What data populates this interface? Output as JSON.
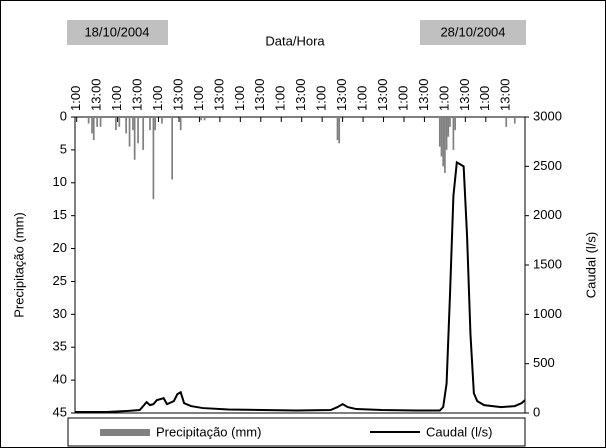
{
  "chart_data": {
    "type": "bar-line",
    "title": "Data/Hora",
    "annotations": [
      "18/10/2004",
      "28/10/2004"
    ],
    "y_label": "Precipitação (mm)",
    "y2_label": "Caudal (l/s)",
    "xlim": [
      0,
      264
    ],
    "xticks": [
      {
        "value": 1,
        "label": "1:00"
      },
      {
        "value": 13,
        "label": "13:00"
      },
      {
        "value": 25,
        "label": "1:00"
      },
      {
        "value": 37,
        "label": "13:00"
      },
      {
        "value": 49,
        "label": "1:00"
      },
      {
        "value": 61,
        "label": "13:00"
      },
      {
        "value": 73,
        "label": "1:00"
      },
      {
        "value": 85,
        "label": "13:00"
      },
      {
        "value": 97,
        "label": "1:00"
      },
      {
        "value": 109,
        "label": "13:00"
      },
      {
        "value": 121,
        "label": "1:00"
      },
      {
        "value": 133,
        "label": "13:00"
      },
      {
        "value": 145,
        "label": "1:00"
      },
      {
        "value": 157,
        "label": "13:00"
      },
      {
        "value": 169,
        "label": "1:00"
      },
      {
        "value": 181,
        "label": "13:00"
      },
      {
        "value": 193,
        "label": "1:00"
      },
      {
        "value": 205,
        "label": "13:00"
      },
      {
        "value": 217,
        "label": "1:00"
      },
      {
        "value": 229,
        "label": "13:00"
      },
      {
        "value": 241,
        "label": "1:00"
      },
      {
        "value": 253,
        "label": "13:00"
      }
    ],
    "ylim": [
      0,
      45
    ],
    "y_reversed": true,
    "yticks": [
      0,
      5,
      10,
      15,
      20,
      25,
      30,
      35,
      40,
      45
    ],
    "y2lim": [
      0,
      3000
    ],
    "y2ticks": [
      0,
      500,
      1000,
      1500,
      2000,
      2500,
      3000
    ],
    "series": [
      {
        "name": "Precipitação (mm)",
        "color": "#808080",
        "kind": "bar",
        "x": [
          8,
          10,
          11,
          13,
          15,
          24,
          26,
          30,
          32,
          34,
          35,
          37,
          40,
          44,
          46,
          47,
          51,
          57,
          62,
          74,
          76,
          154,
          155,
          214,
          215,
          216,
          217,
          218,
          219,
          220,
          222,
          223,
          253,
          258
        ],
        "values": [
          1,
          2.5,
          3.5,
          1.5,
          1.5,
          2,
          1.5,
          2.5,
          4.5,
          2,
          6.5,
          4,
          5,
          2,
          12.5,
          2,
          1,
          9.5,
          2,
          0.5,
          0.5,
          3.5,
          4,
          4.5,
          6,
          7.5,
          8.5,
          5,
          3,
          1.5,
          5,
          2,
          1.5,
          1
        ]
      },
      {
        "name": "Caudal (l/s)",
        "color": "#000000",
        "kind": "line",
        "axis": "y2",
        "x": [
          0,
          20,
          30,
          38,
          42,
          44,
          46,
          48,
          52,
          54,
          58,
          60,
          62,
          64,
          68,
          75,
          90,
          110,
          130,
          150,
          154,
          157,
          160,
          165,
          180,
          200,
          214,
          216,
          218,
          220,
          222,
          224,
          226,
          228,
          230,
          232,
          234,
          236,
          240,
          250,
          258,
          262,
          264
        ],
        "values": [
          10,
          12,
          20,
          30,
          110,
          80,
          90,
          130,
          150,
          90,
          120,
          190,
          210,
          100,
          70,
          50,
          35,
          30,
          25,
          30,
          60,
          90,
          60,
          40,
          30,
          25,
          25,
          60,
          300,
          1200,
          2200,
          2540,
          2520,
          2500,
          1800,
          800,
          200,
          120,
          80,
          60,
          70,
          100,
          130
        ]
      }
    ]
  }
}
